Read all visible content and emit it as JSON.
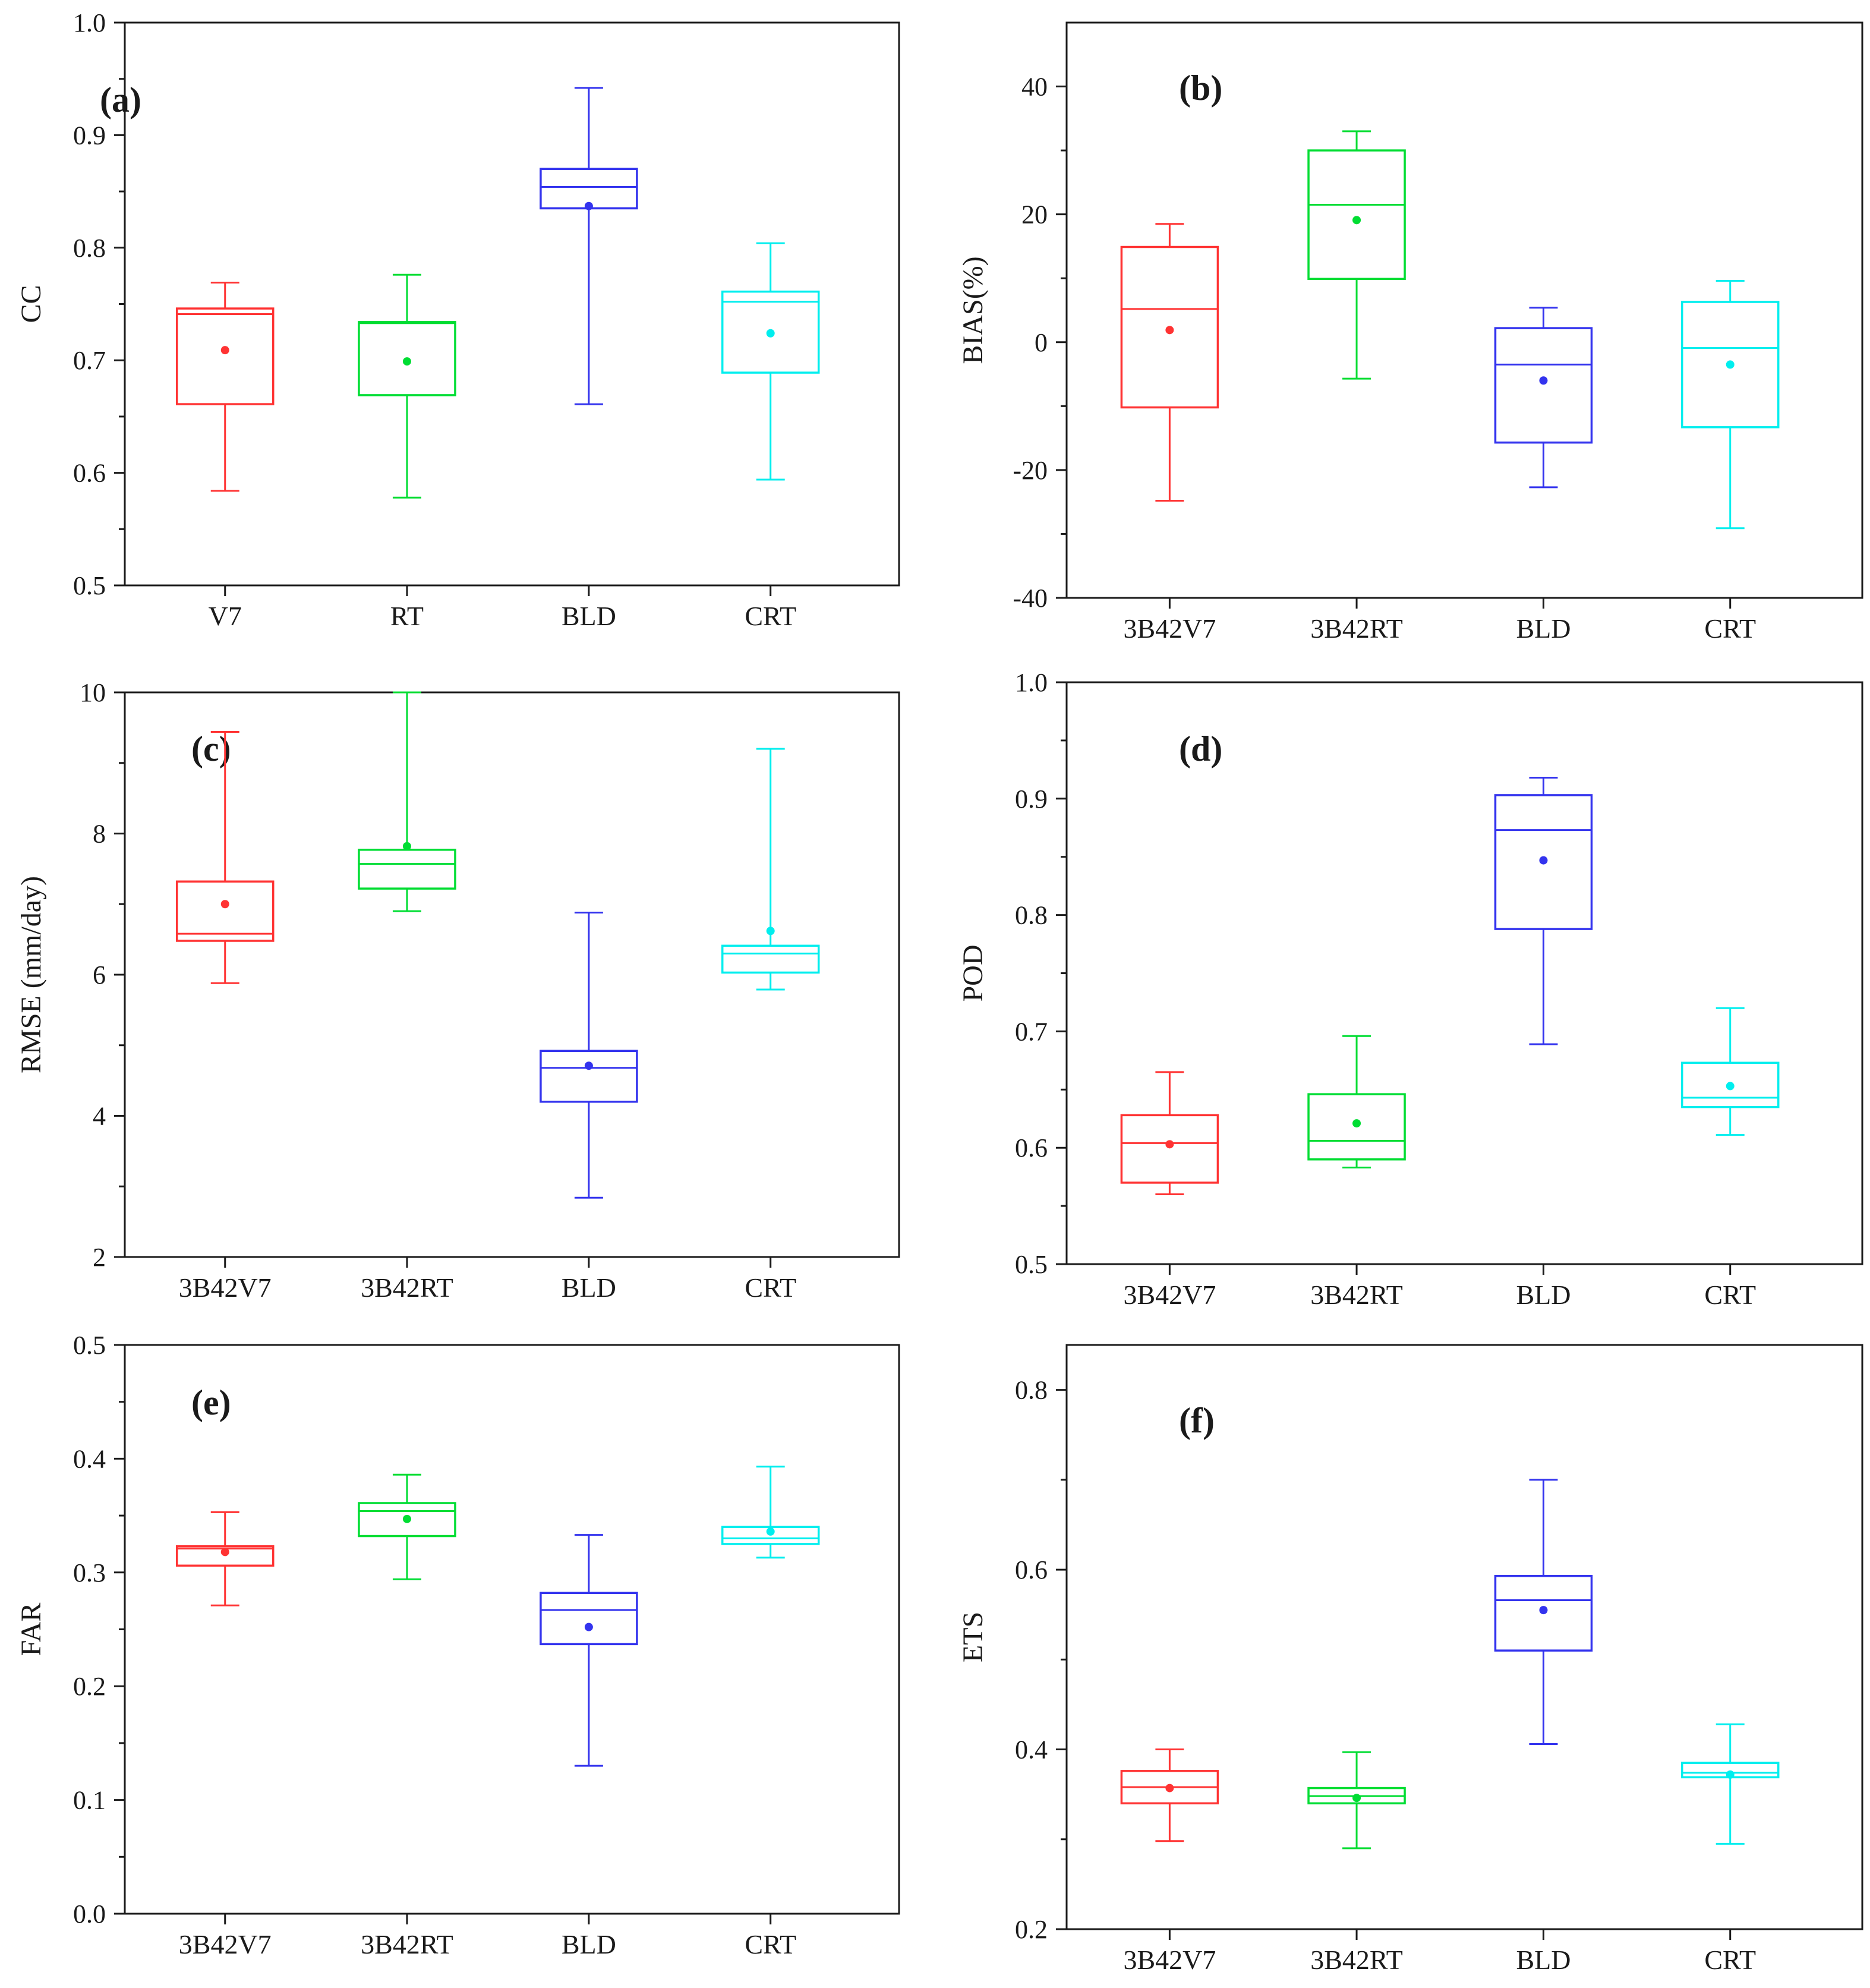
{
  "chart_data": [
    {
      "type": "box",
      "panel_label": "(a)",
      "ylabel": "CC",
      "categories": [
        "V7",
        "RT",
        "BLD",
        "CRT"
      ],
      "ylim": [
        0.5,
        1.0
      ],
      "yticks": [
        "0.5",
        "0.6",
        "0.7",
        "0.8",
        "0.9",
        "1.0"
      ],
      "boxes": [
        {
          "whisker_low": 0.584,
          "q1": 0.661,
          "median": 0.741,
          "q3": 0.746,
          "whisker_high": 0.769,
          "mean": 0.709,
          "color": "#ff3333"
        },
        {
          "whisker_low": 0.578,
          "q1": 0.669,
          "median": 0.733,
          "q3": 0.734,
          "whisker_high": 0.776,
          "mean": 0.699,
          "color": "#00dd33"
        },
        {
          "whisker_low": 0.661,
          "q1": 0.835,
          "median": 0.854,
          "q3": 0.87,
          "whisker_high": 0.942,
          "mean": 0.837,
          "color": "#3333ee"
        },
        {
          "whisker_low": 0.594,
          "q1": 0.689,
          "median": 0.752,
          "q3": 0.761,
          "whisker_high": 0.804,
          "mean": 0.724,
          "color": "#00eeee"
        }
      ]
    },
    {
      "type": "box",
      "panel_label": "(b)",
      "ylabel": "BIAS(%)",
      "categories": [
        "3B42V7",
        "3B42RT",
        "BLD",
        "CRT"
      ],
      "ylim": [
        -40,
        50
      ],
      "yticks": [
        "-40",
        "-20",
        "0",
        "20",
        "40"
      ],
      "boxes": [
        {
          "whisker_low": -24.8,
          "q1": -10.2,
          "median": 5.2,
          "q3": 14.9,
          "whisker_high": 18.5,
          "mean": 1.9,
          "color": "#ff3333"
        },
        {
          "whisker_low": -5.7,
          "q1": 9.9,
          "median": 21.5,
          "q3": 30.0,
          "whisker_high": 33.0,
          "mean": 19.1,
          "color": "#00dd33"
        },
        {
          "whisker_low": -22.7,
          "q1": -15.7,
          "median": -3.5,
          "q3": 2.2,
          "whisker_high": 5.4,
          "mean": -6.0,
          "color": "#3333ee"
        },
        {
          "whisker_low": -29.1,
          "q1": -13.3,
          "median": -0.9,
          "q3": 6.3,
          "whisker_high": 9.6,
          "mean": -3.5,
          "color": "#00eeee"
        }
      ]
    },
    {
      "type": "box",
      "panel_label": "(c)",
      "ylabel": "RMSE (mm/day)",
      "categories": [
        "3B42V7",
        "3B42RT",
        "BLD",
        "CRT"
      ],
      "ylim": [
        2,
        10
      ],
      "yticks": [
        "2",
        "4",
        "6",
        "8",
        "10"
      ],
      "boxes": [
        {
          "whisker_low": 5.88,
          "q1": 6.48,
          "median": 6.58,
          "q3": 7.32,
          "whisker_high": 9.44,
          "mean": 7.0,
          "color": "#ff3333"
        },
        {
          "whisker_low": 6.9,
          "q1": 7.22,
          "median": 7.57,
          "q3": 7.77,
          "whisker_high": 10.0,
          "mean": 7.82,
          "color": "#00dd33"
        },
        {
          "whisker_low": 2.84,
          "q1": 4.2,
          "median": 4.68,
          "q3": 4.92,
          "whisker_high": 6.88,
          "mean": 4.71,
          "color": "#3333ee"
        },
        {
          "whisker_low": 5.79,
          "q1": 6.03,
          "median": 6.3,
          "q3": 6.41,
          "whisker_high": 9.2,
          "mean": 6.62,
          "color": "#00eeee"
        }
      ]
    },
    {
      "type": "box",
      "panel_label": "(d)",
      "ylabel": "POD",
      "categories": [
        "3B42V7",
        "3B42RT",
        "BLD",
        "CRT"
      ],
      "ylim": [
        0.5,
        1.0
      ],
      "yticks": [
        "0.5",
        "0.6",
        "0.7",
        "0.8",
        "0.9",
        "1.0"
      ],
      "boxes": [
        {
          "whisker_low": 0.56,
          "q1": 0.57,
          "median": 0.604,
          "q3": 0.628,
          "whisker_high": 0.665,
          "mean": 0.603,
          "color": "#ff3333"
        },
        {
          "whisker_low": 0.583,
          "q1": 0.59,
          "median": 0.606,
          "q3": 0.646,
          "whisker_high": 0.696,
          "mean": 0.621,
          "color": "#00dd33"
        },
        {
          "whisker_low": 0.689,
          "q1": 0.788,
          "median": 0.873,
          "q3": 0.903,
          "whisker_high": 0.918,
          "mean": 0.847,
          "color": "#3333ee"
        },
        {
          "whisker_low": 0.611,
          "q1": 0.635,
          "median": 0.643,
          "q3": 0.673,
          "whisker_high": 0.72,
          "mean": 0.653,
          "color": "#00eeee"
        }
      ]
    },
    {
      "type": "box",
      "panel_label": "(e)",
      "ylabel": "FAR",
      "categories": [
        "3B42V7",
        "3B42RT",
        "BLD",
        "CRT"
      ],
      "ylim": [
        0.0,
        0.5
      ],
      "yticks": [
        "0.0",
        "0.1",
        "0.2",
        "0.3",
        "0.4",
        "0.5"
      ],
      "boxes": [
        {
          "whisker_low": 0.271,
          "q1": 0.306,
          "median": 0.321,
          "q3": 0.323,
          "whisker_high": 0.353,
          "mean": 0.318,
          "color": "#ff3333"
        },
        {
          "whisker_low": 0.294,
          "q1": 0.332,
          "median": 0.354,
          "q3": 0.361,
          "whisker_high": 0.386,
          "mean": 0.347,
          "color": "#00dd33"
        },
        {
          "whisker_low": 0.13,
          "q1": 0.237,
          "median": 0.267,
          "q3": 0.282,
          "whisker_high": 0.333,
          "mean": 0.252,
          "color": "#3333ee"
        },
        {
          "whisker_low": 0.313,
          "q1": 0.325,
          "median": 0.33,
          "q3": 0.34,
          "whisker_high": 0.393,
          "mean": 0.336,
          "color": "#00eeee"
        }
      ]
    },
    {
      "type": "box",
      "panel_label": "(f)",
      "ylabel": "ETS",
      "categories": [
        "3B42V7",
        "3B42RT",
        "BLD",
        "CRT"
      ],
      "ylim": [
        0.2,
        0.85
      ],
      "yticks": [
        "0.2",
        "0.4",
        "0.6",
        "0.8"
      ],
      "boxes": [
        {
          "whisker_low": 0.298,
          "q1": 0.34,
          "median": 0.358,
          "q3": 0.376,
          "whisker_high": 0.4,
          "mean": 0.357,
          "color": "#ff3333"
        },
        {
          "whisker_low": 0.29,
          "q1": 0.34,
          "median": 0.348,
          "q3": 0.357,
          "whisker_high": 0.397,
          "mean": 0.346,
          "color": "#00dd33"
        },
        {
          "whisker_low": 0.406,
          "q1": 0.51,
          "median": 0.566,
          "q3": 0.593,
          "whisker_high": 0.7,
          "mean": 0.555,
          "color": "#3333ee"
        },
        {
          "whisker_low": 0.295,
          "q1": 0.369,
          "median": 0.374,
          "q3": 0.385,
          "whisker_high": 0.428,
          "mean": 0.372,
          "color": "#00eeee"
        }
      ]
    }
  ]
}
